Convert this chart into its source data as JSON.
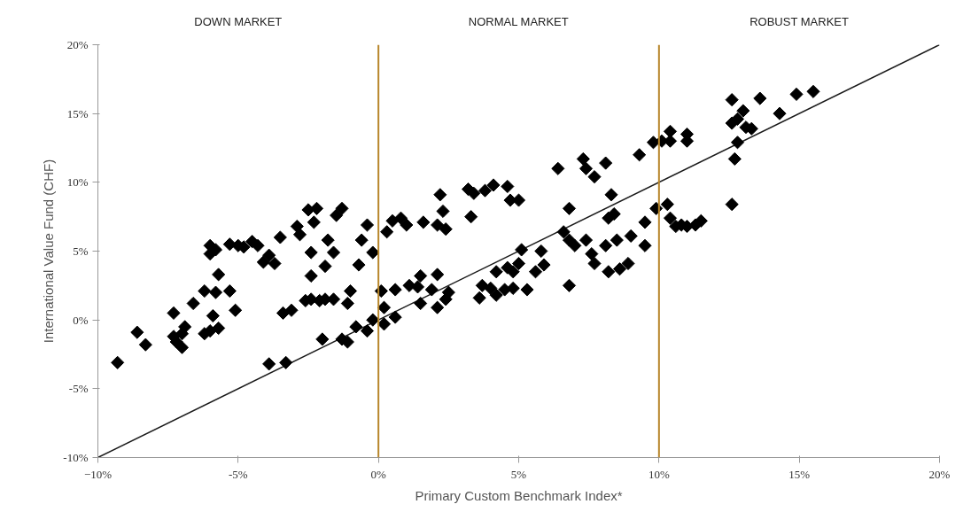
{
  "chart_data": {
    "type": "scatter",
    "xlabel": "Primary Custom Benchmark Index*",
    "ylabel": "International Value Fund (CHF)",
    "annotations": [
      "DOWN MARKET",
      "NORMAL MARKET",
      "ROBUST MARKET"
    ],
    "xlim": [
      -10,
      20
    ],
    "ylim": [
      -10,
      20
    ],
    "xticks": [
      {
        "value": -10,
        "label": "−10%"
      },
      {
        "value": -5,
        "label": "-5%"
      },
      {
        "value": 0,
        "label": "0%"
      },
      {
        "value": 5,
        "label": "5%"
      },
      {
        "value": 10,
        "label": "10%"
      },
      {
        "value": 15,
        "label": "15%"
      },
      {
        "value": 20,
        "label": "20%"
      }
    ],
    "yticks": [
      {
        "value": -10,
        "label": "-10%"
      },
      {
        "value": -5,
        "label": "-5%"
      },
      {
        "value": 0,
        "label": "0%"
      },
      {
        "value": 5,
        "label": "5%"
      },
      {
        "value": 10,
        "label": "10%"
      },
      {
        "value": 15,
        "label": "15%"
      },
      {
        "value": 20,
        "label": "20%"
      }
    ],
    "grid": false,
    "marker": "diamond",
    "ref_lines": [
      {
        "axis": "x",
        "value": 0,
        "label": null,
        "color": "#b8862b"
      },
      {
        "axis": "x",
        "value": 10,
        "label": null,
        "color": "#b8862b"
      }
    ],
    "series": [
      {
        "type": "line",
        "marker": "none",
        "color": "#1a1a1a",
        "x": [
          -10,
          20
        ],
        "values": [
          -10,
          20
        ]
      },
      {
        "color": "#000000",
        "x": [
          -9.3,
          -8.6,
          -8.3,
          -7.3,
          -7.3,
          -7.2,
          -7.0,
          -6.9,
          -7.0,
          -6.6,
          -6.2,
          -6.0,
          -5.8,
          -6.0,
          -5.8,
          -5.7,
          -6.2,
          -6.0,
          -5.7,
          -5.9,
          -5.3,
          -5.1,
          -5.3,
          -5.0,
          -4.8,
          -4.5,
          -4.3,
          -4.1,
          -3.9,
          -3.7,
          -3.5,
          -3.9,
          -3.3,
          -3.4,
          -3.1,
          -2.9,
          -2.8,
          -2.5,
          -2.3,
          -2.2,
          -2.4,
          -2.4,
          -2.6,
          -2.4,
          -2.1,
          -1.9,
          -2.0,
          -1.9,
          -1.8,
          -1.6,
          -1.5,
          -1.3,
          -1.6,
          -1.1,
          -1.0,
          -1.3,
          -1.1,
          -0.8,
          -0.7,
          -0.6,
          -0.4,
          -0.4,
          -0.2,
          -0.2,
          0.1,
          0.2,
          0.2,
          0.3,
          0.5,
          0.8,
          1.0,
          0.6,
          1.1,
          1.4,
          1.5,
          0.6,
          1.5,
          1.6,
          2.1,
          2.2,
          2.3,
          2.4,
          1.9,
          2.1,
          2.4,
          2.5,
          2.1,
          3.2,
          3.4,
          3.3,
          3.8,
          4.1,
          4.6,
          4.7,
          5.0,
          3.7,
          4.0,
          4.2,
          4.5,
          4.8,
          3.6,
          4.2,
          4.6,
          4.8,
          5.0,
          5.1,
          5.3,
          5.6,
          5.8,
          5.9,
          6.4,
          6.8,
          6.6,
          6.8,
          7.0,
          6.8,
          7.3,
          7.4,
          7.7,
          8.1,
          7.4,
          7.6,
          7.7,
          8.1,
          8.2,
          8.4,
          8.5,
          8.2,
          8.6,
          9.0,
          8.9,
          8.3,
          9.3,
          9.5,
          9.5,
          9.8,
          10.1,
          10.4,
          10.4,
          10.3,
          9.9,
          10.4,
          10.6,
          10.8,
          11.0,
          11.3,
          11.5,
          11.0,
          11.0,
          12.6,
          12.8,
          13.0,
          12.6,
          12.7,
          12.8,
          13.1,
          13.3,
          12.6,
          13.6,
          14.3,
          14.9,
          15.5
        ],
        "values": [
          -3.1,
          -0.9,
          -1.8,
          0.5,
          -1.2,
          -1.6,
          -1.0,
          -0.5,
          -2.0,
          1.2,
          2.1,
          5.4,
          5.1,
          4.8,
          2.0,
          3.3,
          -1.0,
          -0.8,
          -0.6,
          0.3,
          2.1,
          0.7,
          5.5,
          5.4,
          5.3,
          5.7,
          5.4,
          4.2,
          4.7,
          4.1,
          6.0,
          -3.2,
          -3.1,
          0.5,
          0.7,
          6.8,
          6.2,
          8.0,
          7.1,
          8.1,
          4.9,
          3.2,
          1.4,
          1.5,
          1.4,
          1.5,
          -1.4,
          3.9,
          5.8,
          4.9,
          7.6,
          8.1,
          1.5,
          1.2,
          2.1,
          -1.4,
          -1.6,
          -0.5,
          4.0,
          5.8,
          6.9,
          -0.8,
          4.9,
          0.0,
          2.1,
          0.9,
          -0.3,
          6.4,
          7.2,
          7.4,
          6.9,
          2.2,
          2.5,
          2.4,
          3.2,
          0.2,
          1.2,
          7.1,
          6.9,
          9.1,
          7.9,
          6.6,
          2.2,
          0.9,
          1.5,
          2.0,
          3.3,
          9.5,
          9.2,
          7.5,
          9.4,
          9.8,
          9.7,
          8.7,
          8.7,
          2.5,
          2.3,
          1.8,
          2.2,
          2.3,
          1.6,
          3.5,
          3.8,
          3.5,
          4.1,
          5.1,
          2.2,
          3.5,
          5.0,
          4.0,
          11.0,
          8.1,
          6.4,
          5.8,
          5.4,
          2.5,
          11.7,
          11.0,
          10.4,
          11.4,
          5.8,
          4.8,
          4.1,
          5.4,
          7.4,
          7.7,
          5.8,
          3.5,
          3.7,
          6.1,
          4.1,
          9.1,
          12.0,
          7.1,
          5.4,
          12.9,
          13.0,
          13.7,
          13.0,
          8.4,
          8.1,
          7.4,
          6.8,
          6.9,
          6.8,
          6.9,
          7.2,
          13.5,
          13.0,
          14.3,
          14.6,
          15.2,
          16.0,
          11.7,
          12.9,
          14.0,
          13.9,
          8.4,
          16.1,
          15.0,
          16.4,
          16.6
        ]
      }
    ]
  }
}
